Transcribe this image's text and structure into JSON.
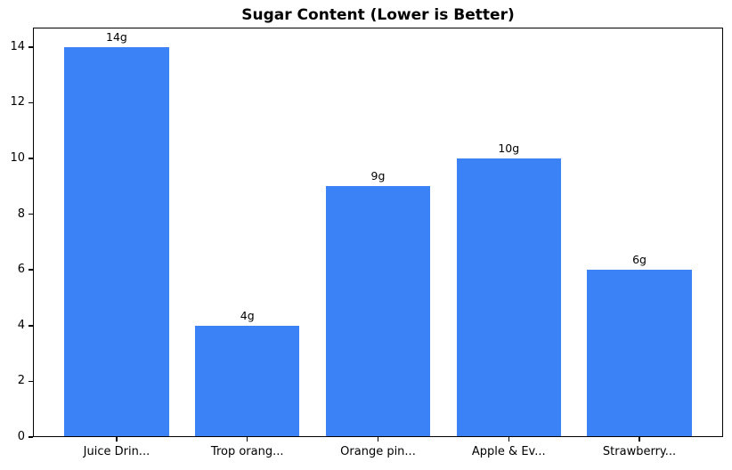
{
  "chart_data": {
    "type": "bar",
    "title": "Sugar Content (Lower is Better)",
    "categories": [
      "Juice Drin...",
      "Trop orang...",
      "Orange pin...",
      "Apple & Ev...",
      "Strawberry..."
    ],
    "values": [
      14,
      4,
      9,
      10,
      6
    ],
    "bar_labels": [
      "14g",
      "4g",
      "9g",
      "10g",
      "6g"
    ],
    "yticks": [
      0,
      2,
      4,
      6,
      8,
      10,
      12,
      14
    ],
    "ylim": [
      0,
      14.7
    ],
    "xlabel": "",
    "ylabel": "",
    "grid": false,
    "legend_position": "none",
    "bar_color": "#3b82f6",
    "axis_color": "#000000",
    "text_color": "#000000",
    "background_color": "#ffffff"
  }
}
